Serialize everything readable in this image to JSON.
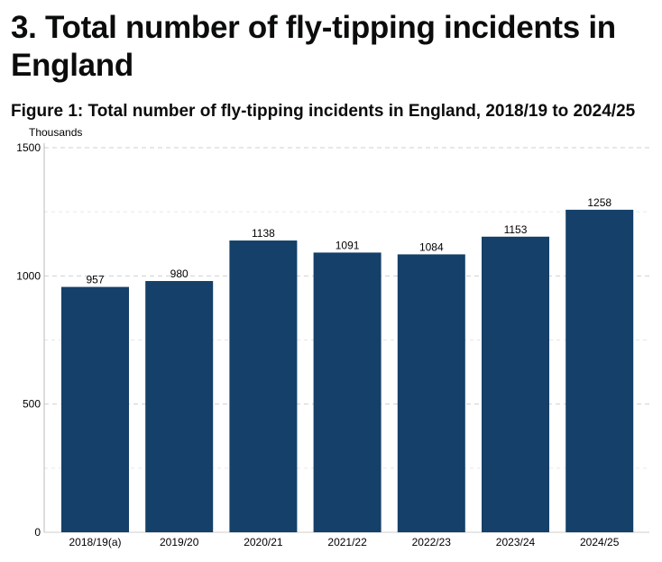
{
  "heading": "3. Total number of fly-tipping incidents in England",
  "chart_data": {
    "type": "bar",
    "title": "Figure 1: Total number of fly-tipping incidents in England, 2018/19 to 2024/25",
    "ylabel": "Thousands",
    "xlabel": "",
    "categories": [
      "2018/19(a)",
      "2019/20",
      "2020/21",
      "2021/22",
      "2022/23",
      "2023/24",
      "2024/25"
    ],
    "values": [
      957,
      980,
      1138,
      1091,
      1084,
      1153,
      1258
    ],
    "ylim": [
      0,
      1500
    ],
    "yticks": [
      0,
      500,
      1000,
      1500
    ],
    "minor_gridlines": [
      250,
      750,
      1250
    ],
    "grid": true,
    "bar_color": "#144069"
  }
}
